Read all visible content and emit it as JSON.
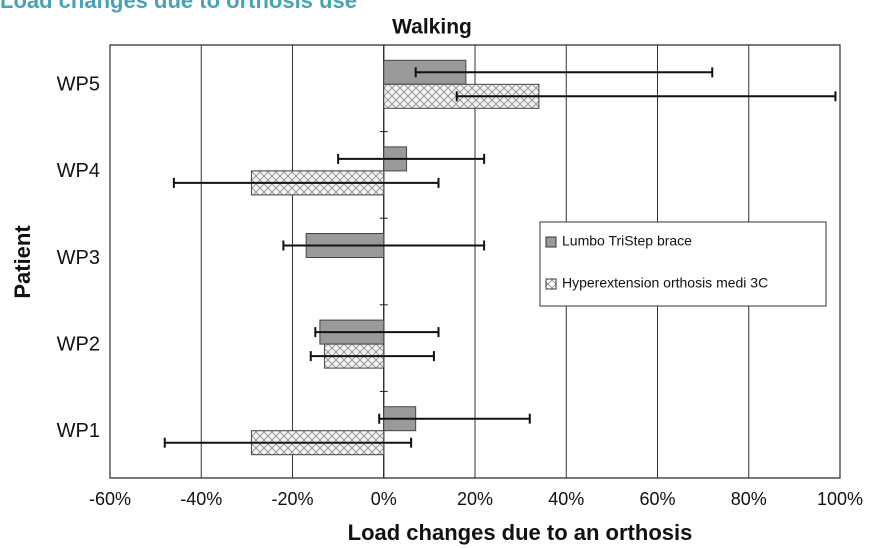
{
  "chart_data": {
    "type": "hbar_error",
    "header": "Load changes due to orthosis use",
    "title": "Walking",
    "xlabel": "Load changes due to an orthosis",
    "ylabel": "Patient",
    "categories": [
      "WP1",
      "WP2",
      "WP3",
      "WP4",
      "WP5"
    ],
    "series": [
      {
        "name": "Lumbo TriStep brace",
        "color": "#9a9a9a",
        "pattern": "solid",
        "values": [
          7,
          -14,
          -17,
          5,
          18
        ],
        "error_low": [
          -1,
          -15,
          -22,
          -10,
          7
        ],
        "error_high": [
          32,
          12,
          22,
          22,
          72
        ]
      },
      {
        "name": "Hyperextension orthosis medi 3C",
        "color": "#f2f2f2",
        "pattern": "crosshatch",
        "values": [
          -29,
          -13,
          null,
          -29,
          34
        ],
        "error_low": [
          -48,
          -16,
          null,
          -46,
          16
        ],
        "error_high": [
          6,
          11,
          null,
          12,
          99
        ]
      }
    ],
    "xlim": [
      -60,
      100
    ],
    "xticks": [
      {
        "value": -60,
        "label": "-60%"
      },
      {
        "value": -40,
        "label": "-40%"
      },
      {
        "value": -20,
        "label": "-20%"
      },
      {
        "value": 0,
        "label": "0%"
      },
      {
        "value": 20,
        "label": "20%"
      },
      {
        "value": 40,
        "label": "40%"
      },
      {
        "value": 60,
        "label": "60%"
      },
      {
        "value": 80,
        "label": "80%"
      },
      {
        "value": 100,
        "label": "100%"
      }
    ],
    "grid": true,
    "legend": "right"
  }
}
